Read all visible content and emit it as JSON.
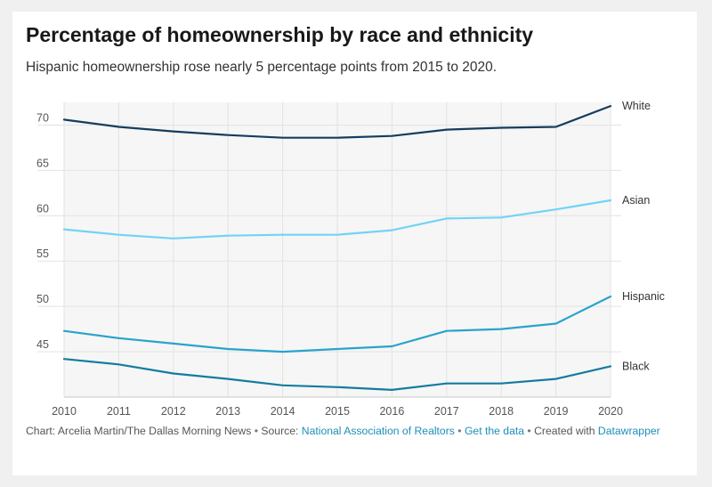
{
  "header": {
    "title": "Percentage of homeownership by race and ethnicity",
    "subtitle": "Hispanic homeownership rose nearly 5 percentage points from 2015 to 2020."
  },
  "footer": {
    "chart_credit": "Chart: Arcelia Martin/The Dallas Morning News",
    "source_prefix": "Source:",
    "source_link": "National Association of Realtors",
    "data_link": "Get the data",
    "created_prefix": "Created with",
    "created_link": "Datawrapper",
    "separator": "•"
  },
  "colors": {
    "White": "#163d5e",
    "Asian": "#72d3f5",
    "Hispanic": "#2aa3cc",
    "Black": "#157ba0",
    "grid": "#e3e3e3",
    "band": "#f6f6f6"
  },
  "chart_data": {
    "type": "line",
    "title": "Percentage of homeownership by race and ethnicity",
    "subtitle": "Hispanic homeownership rose nearly 5 percentage points from 2015 to 2020.",
    "x": [
      2010,
      2011,
      2012,
      2013,
      2014,
      2015,
      2016,
      2017,
      2018,
      2019,
      2020
    ],
    "x_ticks": [
      "2010",
      "2011",
      "2012",
      "2013",
      "2014",
      "2015",
      "2016",
      "2017",
      "2018",
      "2019",
      "2020"
    ],
    "y_ticks": [
      "45",
      "50",
      "55",
      "60",
      "65",
      "70"
    ],
    "ylim": [
      40,
      72.5
    ],
    "grid": true,
    "legend": "direct labels at right end of lines",
    "series": [
      {
        "name": "White",
        "values": [
          70.6,
          69.8,
          69.3,
          68.9,
          68.6,
          68.6,
          68.8,
          69.5,
          69.7,
          69.8,
          72.1
        ]
      },
      {
        "name": "Asian",
        "values": [
          58.5,
          57.9,
          57.5,
          57.8,
          57.9,
          57.9,
          58.4,
          59.7,
          59.8,
          60.7,
          61.7
        ]
      },
      {
        "name": "Hispanic",
        "values": [
          47.3,
          46.5,
          45.9,
          45.3,
          45.0,
          45.3,
          45.6,
          47.3,
          47.5,
          48.1,
          51.1
        ]
      },
      {
        "name": "Black",
        "values": [
          44.2,
          43.6,
          42.6,
          42.0,
          41.3,
          41.1,
          40.8,
          41.5,
          41.5,
          42.0,
          43.4
        ]
      }
    ]
  }
}
